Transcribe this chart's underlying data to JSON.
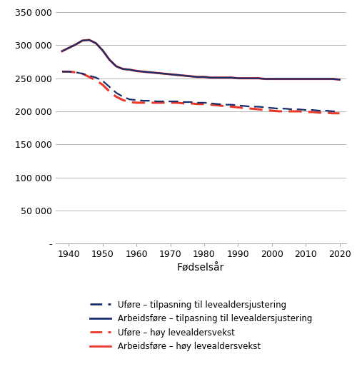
{
  "x": [
    1938,
    1940,
    1942,
    1944,
    1946,
    1948,
    1950,
    1952,
    1954,
    1956,
    1958,
    1960,
    1962,
    1964,
    1966,
    1968,
    1970,
    1972,
    1974,
    1976,
    1978,
    1980,
    1982,
    1984,
    1986,
    1988,
    1990,
    1992,
    1994,
    1996,
    1998,
    2000,
    2002,
    2004,
    2006,
    2008,
    2010,
    2012,
    2014,
    2016,
    2018,
    2020
  ],
  "arbeidsfor_forventet": [
    291000,
    296000,
    301000,
    307000,
    308000,
    303000,
    292000,
    278000,
    268000,
    264000,
    263000,
    261000,
    260000,
    259000,
    258000,
    257000,
    256000,
    255000,
    254000,
    253000,
    252000,
    252000,
    251000,
    251000,
    251000,
    251000,
    250000,
    250000,
    250000,
    250000,
    249000,
    249000,
    249000,
    249000,
    249000,
    249000,
    249000,
    249000,
    249000,
    249000,
    249000,
    248000
  ],
  "arbeidsfor_hoy": [
    291000,
    296000,
    301000,
    307000,
    308000,
    303000,
    292000,
    278000,
    268000,
    264000,
    263000,
    261000,
    260000,
    259000,
    258000,
    257000,
    256000,
    255000,
    254000,
    253000,
    252000,
    252000,
    251000,
    251000,
    251000,
    251000,
    250000,
    250000,
    250000,
    250000,
    249000,
    249000,
    249000,
    249000,
    249000,
    249000,
    249000,
    249000,
    249000,
    249000,
    249000,
    248000
  ],
  "ufor_forventet": [
    260000,
    260000,
    259000,
    257000,
    254000,
    251000,
    246000,
    237000,
    228000,
    222000,
    218000,
    217000,
    216000,
    216000,
    215000,
    215000,
    215000,
    215000,
    214000,
    214000,
    213000,
    213000,
    212000,
    211000,
    210000,
    210000,
    209000,
    208000,
    207000,
    207000,
    206000,
    205000,
    204000,
    204000,
    203000,
    203000,
    202000,
    202000,
    201000,
    201000,
    200000,
    200000
  ],
  "ufor_hoy": [
    260000,
    260000,
    259000,
    257000,
    252000,
    247000,
    240000,
    230000,
    222000,
    217000,
    214000,
    213000,
    213000,
    213000,
    213000,
    213000,
    213000,
    213000,
    212000,
    212000,
    211000,
    211000,
    210000,
    209000,
    208000,
    207000,
    206000,
    205000,
    204000,
    203000,
    202000,
    201000,
    200000,
    200000,
    200000,
    200000,
    199000,
    199000,
    198000,
    198000,
    197000,
    197000
  ],
  "xlabel": "Fødselsår",
  "ytick_vals": [
    0,
    50000,
    100000,
    150000,
    200000,
    250000,
    300000,
    350000
  ],
  "ytick_labels": [
    "-",
    "50 000",
    "100 000",
    "150 000",
    "200 000",
    "250 000",
    "300 000",
    "350 000"
  ],
  "xticks": [
    1940,
    1950,
    1960,
    1970,
    1980,
    1990,
    2000,
    2010,
    2020
  ],
  "xlim": [
    1936,
    2022
  ],
  "ylim": [
    0,
    360000
  ],
  "color_navy": "#1a2d6b",
  "color_red": "#e8382a",
  "lw": 1.6,
  "legend": [
    {
      "label": "Uføre – tilpasning til levealdersjustering",
      "color": "#1a2d6b",
      "ls": "dashed"
    },
    {
      "label": "Arbeidsføre – tilpasning til levealdersjustering",
      "color": "#1a2d6b",
      "ls": "solid"
    },
    {
      "label": "Uføre – høy levealdersvekst",
      "color": "#e8382a",
      "ls": "dashed"
    },
    {
      "label": "Arbeidsføre – høy levealdersvekst",
      "color": "#e8382a",
      "ls": "solid"
    }
  ]
}
